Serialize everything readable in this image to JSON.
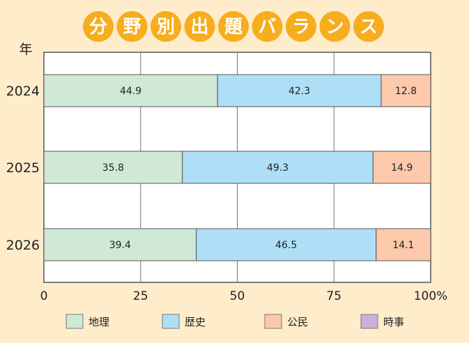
{
  "title_chars": [
    "分",
    "野",
    "別",
    "出",
    "題",
    "バ",
    "ラ",
    "ン",
    "ス"
  ],
  "colors": {
    "title_circle": "#f6ad1e",
    "background": "#ffeccb",
    "plot_background": "#ffffff",
    "grid": "#555555"
  },
  "chart_data": {
    "type": "bar",
    "orientation": "horizontal",
    "stacked": true,
    "title": "分野別出題バランス",
    "ylabel": "年",
    "categories": [
      "2024",
      "2025",
      "2026"
    ],
    "series": [
      {
        "name": "地理",
        "color": "#cfe9d6",
        "values": [
          44.9,
          35.8,
          39.4
        ]
      },
      {
        "name": "歴史",
        "color": "#aedff7",
        "values": [
          42.3,
          49.3,
          46.5
        ]
      },
      {
        "name": "公民",
        "color": "#fcc9aa",
        "values": [
          12.8,
          14.9,
          14.1
        ]
      },
      {
        "name": "時事",
        "color": "#c8b2db",
        "values": [
          0,
          0,
          0
        ]
      }
    ],
    "xlim": [
      0,
      100
    ],
    "xticks": [
      0,
      25,
      50,
      75,
      100
    ],
    "xtick_labels": [
      "0",
      "25",
      "50",
      "75",
      "100%"
    ],
    "grid": true,
    "legend_position": "bottom"
  }
}
